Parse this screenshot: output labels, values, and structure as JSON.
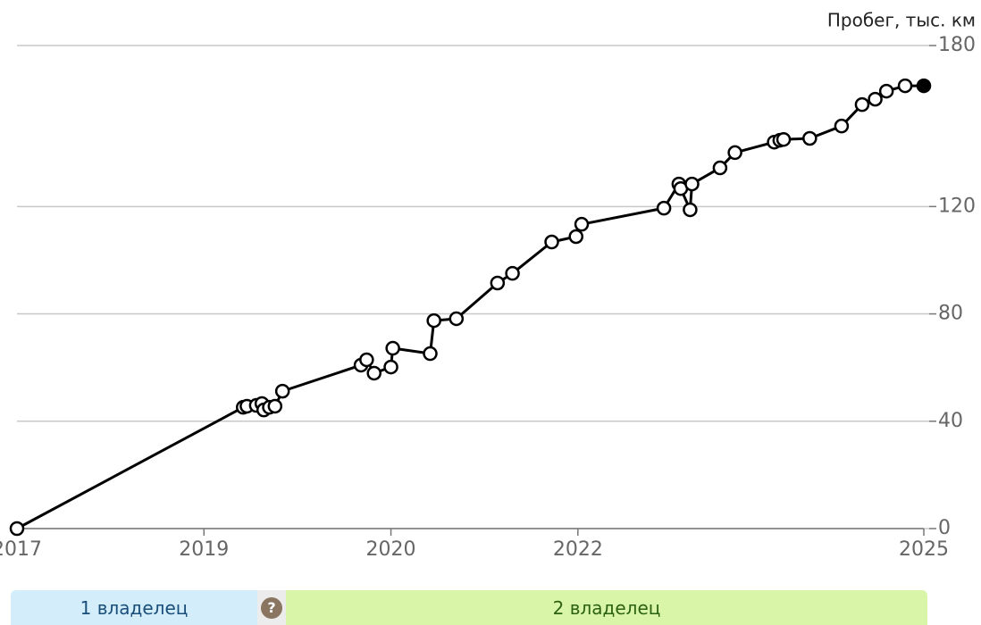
{
  "chart_data": {
    "type": "line",
    "y_axis_label": "Пробег, тыс. км",
    "x": [
      0,
      1.21,
      1.23,
      1.28,
      1.31,
      1.32,
      1.35,
      1.38,
      1.42,
      1.84,
      1.87,
      1.91,
      2.0,
      2.01,
      2.21,
      2.23,
      2.35,
      2.57,
      2.65,
      2.86,
      2.99,
      3.02,
      3.46,
      3.54,
      3.55,
      3.6,
      3.61,
      3.76,
      3.84,
      4.05,
      4.08,
      4.1,
      4.24,
      4.41,
      4.52,
      4.59,
      4.65,
      4.75,
      4.85
    ],
    "series": [
      {
        "color": "#000000",
        "values": [
          0,
          45.2,
          45.6,
          45.9,
          46.6,
          44.2,
          45.2,
          45.6,
          51.2,
          60.9,
          62.9,
          57.9,
          60.2,
          67.2,
          65.2,
          77.5,
          78.2,
          91.5,
          95.1,
          106.8,
          108.8,
          113.4,
          119.4,
          128.4,
          126.7,
          118.8,
          128.4,
          134.4,
          140.1,
          144.0,
          144.7,
          145.0,
          145.4,
          150.0,
          158.0,
          160.0,
          163.0,
          165.0,
          165.0
        ]
      }
    ],
    "xlim": [
      0,
      4.85
    ],
    "xticks": [
      {
        "value": 0,
        "label": "2017"
      },
      {
        "value": 1,
        "label": "2019"
      },
      {
        "value": 2,
        "label": "2020"
      },
      {
        "value": 3,
        "label": "2022"
      },
      {
        "value": 4.85,
        "label": "2025"
      }
    ],
    "ylim": [
      0,
      180
    ],
    "yticks": [
      0,
      40,
      80,
      120,
      180
    ],
    "grid": true
  },
  "owners": [
    {
      "label": "1 владелец"
    },
    {
      "label": "?"
    },
    {
      "label": "2 владелец"
    }
  ]
}
